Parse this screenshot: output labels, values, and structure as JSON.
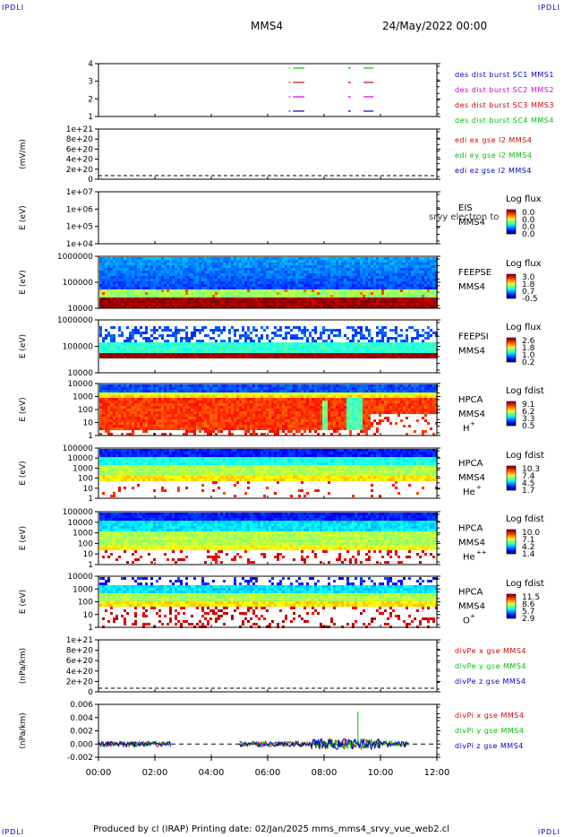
{
  "header": {
    "corner_tag": "IPDLI",
    "spacecraft": "MMS4",
    "date": "24/May/2022 00:00"
  },
  "footer": {
    "text": "Produced by cl (IRAP)   Printing date: 02/Jan/2025   mms_mms4_srvy_vue_web2.cl"
  },
  "colors": {
    "blue": "#0000c8",
    "magenta": "#d000d0",
    "red": "#d00000",
    "green": "#00c000"
  },
  "chart_data": {
    "type": "heatmap",
    "x_axis": {
      "ticks": [
        "00:00",
        "02:00",
        "04:00",
        "06:00",
        "08:00",
        "10:00",
        "12:00"
      ],
      "range_hours": [
        0,
        12
      ]
    },
    "panels": [
      {
        "id": "burst",
        "type": "line",
        "ylabel": "",
        "ytick_labels": [
          "4",
          "3",
          "2",
          "1"
        ],
        "legend": [
          {
            "text": "des dist burst SC1 MMS1",
            "color": "blue"
          },
          {
            "text": "des dist burst SC2 MMS2",
            "color": "magenta"
          },
          {
            "text": "des dist burst SC3 MMS3",
            "color": "red"
          },
          {
            "text": "des dist burst SC4 MMS4",
            "color": "green"
          }
        ]
      },
      {
        "id": "edi",
        "type": "line",
        "ylabel": "(mV/m)",
        "ytick_labels": [
          "1e+21",
          "8e+20",
          "6e+20",
          "4e+20",
          "2e+20",
          "0"
        ],
        "legend": [
          {
            "text": "edi ex gse l2 MMS4",
            "color": "red"
          },
          {
            "text": "edi ey gse l2 MMS4",
            "color": "green"
          },
          {
            "text": "edi ez gse l2 MMS4",
            "color": "blue"
          }
        ]
      },
      {
        "id": "eis",
        "type": "heatmap",
        "ylabel": "E (eV)",
        "ytick_labels": [
          "1e+07",
          "1e+06",
          "1e+05",
          "1e+04"
        ],
        "instrument": [
          "EIS",
          "MMS4"
        ],
        "overlay": "srvy electron to",
        "colorbar": {
          "title": "Log flux",
          "ticks": [
            "0.0",
            "0.0",
            "0.0",
            "0.0"
          ]
        }
      },
      {
        "id": "feepse",
        "type": "heatmap",
        "ylabel": "E (eV)",
        "ytick_labels": [
          "1000000",
          "100000",
          "10000"
        ],
        "instrument": [
          "FEEPSE",
          "MMS4"
        ],
        "colorbar": {
          "title": "Log flux",
          "ticks": [
            "3.0",
            "1.8",
            "0.7",
            "-0.5"
          ]
        }
      },
      {
        "id": "feepsi",
        "type": "heatmap",
        "ylabel": "E (eV)",
        "ytick_labels": [
          "1000000",
          "100000",
          "10000"
        ],
        "instrument": [
          "FEEPSI",
          "MMS4"
        ],
        "colorbar": {
          "title": "Log flux",
          "ticks": [
            "2.6",
            "1.8",
            "1.0",
            "0.2"
          ]
        }
      },
      {
        "id": "hpca_h",
        "type": "heatmap",
        "ylabel": "E (eV)",
        "ytick_labels": [
          "10000",
          "1000",
          "100",
          "10",
          "1"
        ],
        "instrument": [
          "HPCA",
          "MMS4",
          "H",
          "+"
        ],
        "colorbar": {
          "title": "Log fdist",
          "ticks": [
            "9.1",
            "6.2",
            "3.3",
            "0.5"
          ]
        }
      },
      {
        "id": "hpca_he",
        "type": "heatmap",
        "ylabel": "E (eV)",
        "ytick_labels": [
          "100000",
          "10000",
          "1000",
          "100",
          "10",
          "1"
        ],
        "instrument": [
          "HPCA",
          "MMS4",
          "He",
          "+"
        ],
        "colorbar": {
          "title": "Log fdist",
          "ticks": [
            "10.3",
            "7.4",
            "4.5",
            "1.7"
          ]
        }
      },
      {
        "id": "hpca_hepp",
        "type": "heatmap",
        "ylabel": "E (eV)",
        "ytick_labels": [
          "100000",
          "10000",
          "1000",
          "100",
          "10",
          "1"
        ],
        "instrument": [
          "HPCA",
          "MMS4",
          "He",
          "++"
        ],
        "colorbar": {
          "title": "Log fdist",
          "ticks": [
            "10.0",
            "7.1",
            "4.2",
            "1.4"
          ]
        }
      },
      {
        "id": "hpca_o",
        "type": "heatmap",
        "ylabel": "E (eV)",
        "ytick_labels": [
          "10000",
          "1000",
          "100",
          "10",
          "1"
        ],
        "instrument": [
          "HPCA",
          "MMS4",
          "O",
          "+"
        ],
        "colorbar": {
          "title": "Log fdist",
          "ticks": [
            "11.5",
            "8.6",
            "5.7",
            "2.9"
          ]
        }
      },
      {
        "id": "divpe",
        "type": "line",
        "ylabel": "(nPa/km)",
        "ytick_labels": [
          "1e+21",
          "8e+20",
          "6e+20",
          "4e+20",
          "2e+20",
          "0"
        ],
        "legend": [
          {
            "text": "divPe x gse MMS4",
            "color": "red"
          },
          {
            "text": "divPe y gse MMS4",
            "color": "green"
          },
          {
            "text": "divPe z gse MMS4",
            "color": "blue"
          }
        ]
      },
      {
        "id": "divpi",
        "type": "line",
        "ylabel": "(nPa/km)",
        "ytick_labels": [
          "0.006",
          "0.004",
          "0.002",
          "0.000",
          "-0.002"
        ],
        "legend": [
          {
            "text": "divPi x gse MMS4",
            "color": "red"
          },
          {
            "text": "divPi y gse MMS4",
            "color": "green"
          },
          {
            "text": "divPi z gse MMS4",
            "color": "blue"
          }
        ]
      }
    ]
  }
}
